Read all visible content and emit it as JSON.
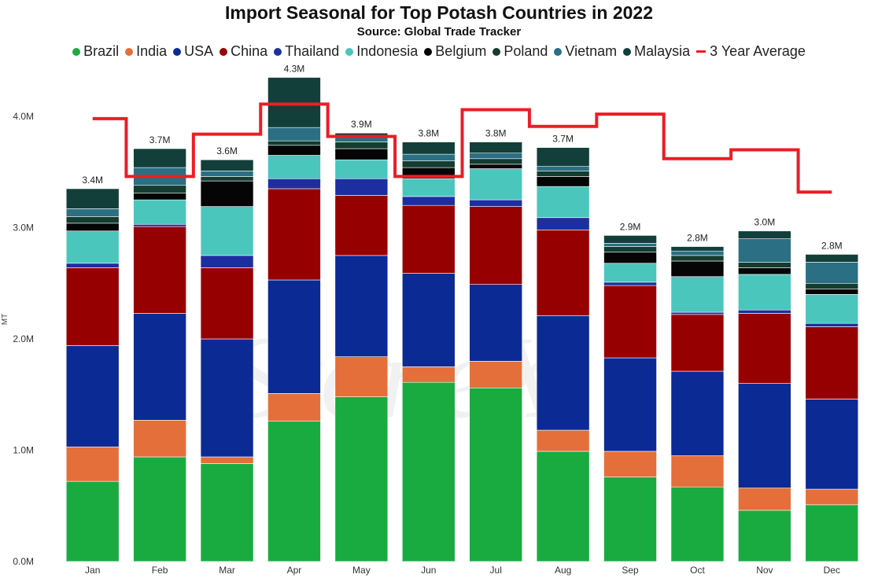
{
  "chart_data": {
    "type": "bar",
    "stacked": true,
    "title": "Import Seasonal for Top Potash Countries in 2022",
    "subtitle": "Source: Global Trade Tracker",
    "ylabel": "MT",
    "ylim": [
      0,
      4400000
    ],
    "yticks": [
      0,
      1000000,
      2000000,
      3000000,
      4000000
    ],
    "ytick_labels": [
      "0.0M",
      "1.0M",
      "2.0M",
      "3.0M",
      "4.0M"
    ],
    "grid": false,
    "legend_position": "top-center",
    "categories": [
      "Jan",
      "Feb",
      "Mar",
      "Apr",
      "May",
      "Jun",
      "Jul",
      "Aug",
      "Sep",
      "Oct",
      "Nov",
      "Dec"
    ],
    "total_labels": [
      "3.4M",
      "3.7M",
      "3.6M",
      "4.3M",
      "3.9M",
      "3.8M",
      "3.8M",
      "3.7M",
      "2.9M",
      "2.8M",
      "3.0M",
      "2.8M"
    ],
    "series": [
      {
        "name": "Brazil",
        "color": "#1aab40",
        "values": [
          720000,
          940000,
          880000,
          1260000,
          1480000,
          1610000,
          1560000,
          990000,
          760000,
          670000,
          460000,
          510000
        ]
      },
      {
        "name": "India",
        "color": "#e46f3a",
        "values": [
          310000,
          330000,
          60000,
          250000,
          360000,
          140000,
          240000,
          190000,
          230000,
          280000,
          200000,
          140000
        ]
      },
      {
        "name": "USA",
        "color": "#0c2a94",
        "values": [
          910000,
          960000,
          1060000,
          1020000,
          910000,
          840000,
          690000,
          1030000,
          840000,
          760000,
          940000,
          810000
        ]
      },
      {
        "name": "China",
        "color": "#970000",
        "values": [
          700000,
          780000,
          640000,
          820000,
          540000,
          610000,
          700000,
          770000,
          650000,
          510000,
          630000,
          650000
        ]
      },
      {
        "name": "Thailand",
        "color": "#1d2fa0",
        "values": [
          40000,
          20000,
          110000,
          90000,
          150000,
          80000,
          60000,
          110000,
          30000,
          20000,
          30000,
          30000
        ]
      },
      {
        "name": "Indonesia",
        "color": "#4ac6bd",
        "values": [
          290000,
          220000,
          440000,
          210000,
          170000,
          160000,
          280000,
          280000,
          170000,
          320000,
          320000,
          260000
        ]
      },
      {
        "name": "Belgium",
        "color": "#050505",
        "values": [
          70000,
          60000,
          230000,
          90000,
          100000,
          100000,
          40000,
          90000,
          100000,
          140000,
          60000,
          50000
        ]
      },
      {
        "name": "Poland",
        "color": "#143c30",
        "values": [
          60000,
          70000,
          40000,
          40000,
          60000,
          60000,
          50000,
          50000,
          50000,
          50000,
          50000,
          50000
        ]
      },
      {
        "name": "Vietnam",
        "color": "#2a6f84",
        "values": [
          70000,
          160000,
          50000,
          120000,
          40000,
          60000,
          50000,
          40000,
          30000,
          40000,
          210000,
          190000
        ]
      },
      {
        "name": "Malaysia",
        "color": "#123f3a",
        "values": [
          180000,
          170000,
          100000,
          450000,
          40000,
          110000,
          100000,
          170000,
          70000,
          40000,
          70000,
          70000
        ]
      }
    ],
    "line_series": {
      "name": "3 Year Average",
      "color": "#ee1c25",
      "values": [
        3980000,
        3460000,
        3840000,
        4110000,
        3820000,
        3460000,
        4060000,
        3910000,
        4020000,
        3620000,
        3700000,
        3320000
      ]
    }
  },
  "watermark": "StoneX"
}
